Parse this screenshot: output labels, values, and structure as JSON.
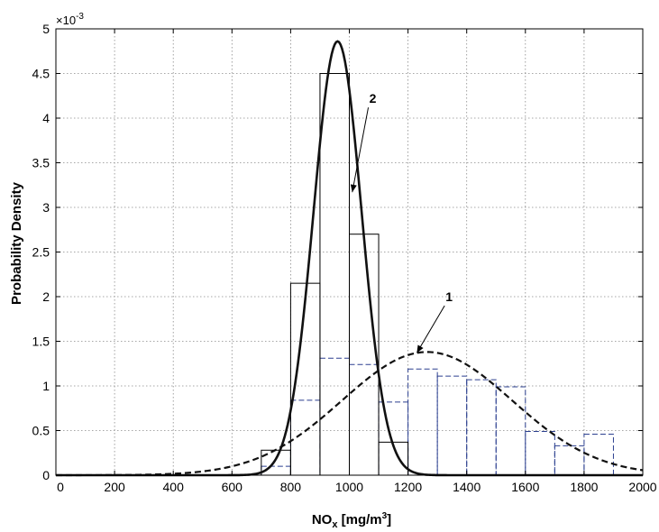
{
  "chart_data": {
    "type": "histogram-with-fitted-curves",
    "xlabel": {
      "main": "NO",
      "sub": "x",
      "rest": " [mg/m",
      "sup": "3",
      "end": "]"
    },
    "ylabel": "Probability Density",
    "y_multiplier": {
      "base": "×10",
      "exp": "-3"
    },
    "xlim": [
      0,
      2000
    ],
    "ylim": [
      0,
      5
    ],
    "x_ticks": [
      0,
      200,
      400,
      600,
      800,
      1000,
      1200,
      1400,
      1600,
      1800,
      2000
    ],
    "y_ticks": [
      0,
      0.5,
      1,
      1.5,
      2,
      2.5,
      3,
      3.5,
      4,
      4.5,
      5
    ],
    "x_tick_labels": [
      "0",
      "200",
      "400",
      "600",
      "800",
      "1000",
      "1200",
      "1400",
      "1600",
      "1800",
      "2000"
    ],
    "y_tick_labels": [
      "0",
      "0.5",
      "1",
      "1.5",
      "2",
      "2.5",
      "3",
      "3.5",
      "4",
      "4.5",
      "5"
    ],
    "grid": true,
    "histograms": [
      {
        "style": "solid",
        "color": "#000000",
        "bins": [
          {
            "x0": 700,
            "x1": 800,
            "y": 0.28
          },
          {
            "x0": 800,
            "x1": 900,
            "y": 2.15
          },
          {
            "x0": 900,
            "x1": 1000,
            "y": 4.5
          },
          {
            "x0": 1000,
            "x1": 1100,
            "y": 2.7
          },
          {
            "x0": 1100,
            "x1": 1200,
            "y": 0.37
          }
        ]
      },
      {
        "style": "dashed",
        "color": "#2b3f8f",
        "bins": [
          {
            "x0": 700,
            "x1": 800,
            "y": 0.1
          },
          {
            "x0": 800,
            "x1": 900,
            "y": 0.84
          },
          {
            "x0": 900,
            "x1": 1000,
            "y": 1.31
          },
          {
            "x0": 1000,
            "x1": 1100,
            "y": 1.24
          },
          {
            "x0": 1100,
            "x1": 1200,
            "y": 0.82
          },
          {
            "x0": 1200,
            "x1": 1300,
            "y": 1.19
          },
          {
            "x0": 1300,
            "x1": 1400,
            "y": 1.11
          },
          {
            "x0": 1400,
            "x1": 1500,
            "y": 1.07
          },
          {
            "x0": 1500,
            "x1": 1600,
            "y": 0.99
          },
          {
            "x0": 1600,
            "x1": 1700,
            "y": 0.49
          },
          {
            "x0": 1700,
            "x1": 1800,
            "y": 0.33
          },
          {
            "x0": 1800,
            "x1": 1900,
            "y": 0.46
          }
        ]
      }
    ],
    "curves": [
      {
        "id": "2",
        "style": "solid",
        "color": "#111111",
        "mean": 960,
        "sd": 82,
        "peak": 4.86
      },
      {
        "id": "1",
        "style": "dashed",
        "color": "#111111",
        "mean": 1265,
        "sd": 290,
        "peak": 1.38
      }
    ],
    "annotations": [
      {
        "text": "2",
        "text_xy": [
          1080,
          4.17
        ],
        "arrow_to": [
          1010,
          3.17
        ]
      },
      {
        "text": "1",
        "text_xy": [
          1340,
          1.95
        ],
        "arrow_to": [
          1230,
          1.37
        ]
      }
    ]
  }
}
